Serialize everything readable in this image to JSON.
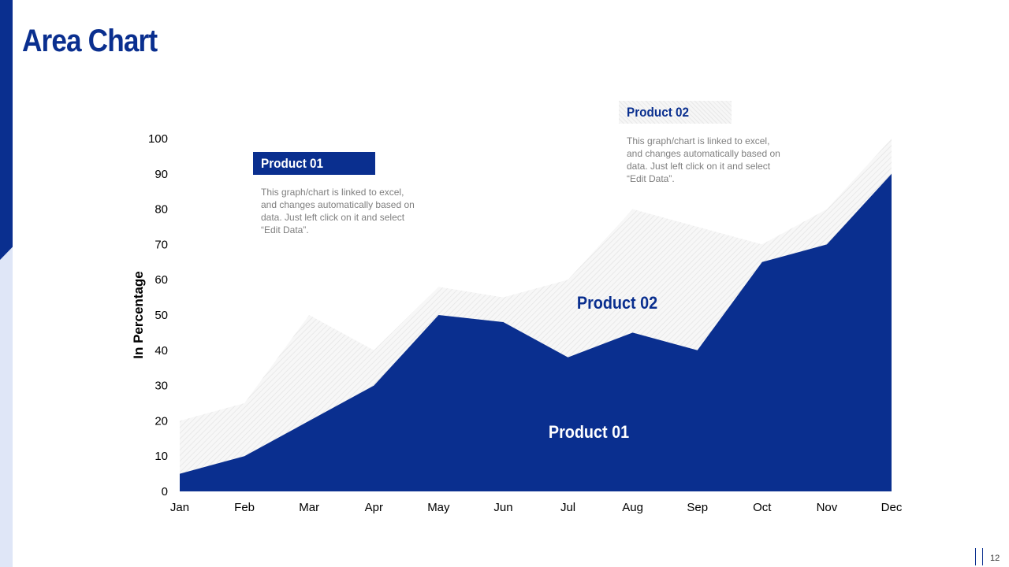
{
  "slide": {
    "title": "Area Chart",
    "page_number": "12"
  },
  "colors": {
    "primary": "#0a2f8f",
    "hatch": "#e3e3e3",
    "text_gray": "#7f7f7f",
    "accent_light": "#dfe6f7"
  },
  "legend": {
    "product_01": {
      "label": "Product 01",
      "description": "This graph/chart is linked to excel, and changes automatically based on data. Just left click on it and select “Edit Data”."
    },
    "product_02": {
      "label": "Product 02",
      "description": "This graph/chart is linked to excel, and changes automatically based on data. Just left click on it and select “Edit Data”."
    }
  },
  "chart_data": {
    "type": "area",
    "title": "",
    "xlabel": "",
    "ylabel": "In Percentage",
    "ylim": [
      0,
      100
    ],
    "yticks": [
      "0",
      "10",
      "20",
      "30",
      "40",
      "50",
      "60",
      "70",
      "80",
      "90",
      "100"
    ],
    "grid": false,
    "categories": [
      "Jan",
      "Feb",
      "Mar",
      "Apr",
      "May",
      "Jun",
      "Jul",
      "Aug",
      "Sep",
      "Oct",
      "Nov",
      "Dec"
    ],
    "series": [
      {
        "name": "Product 02",
        "values": [
          20,
          25,
          50,
          40,
          58,
          55,
          60,
          80,
          75,
          70,
          80,
          100
        ]
      },
      {
        "name": "Product 01",
        "values": [
          5,
          10,
          20,
          30,
          50,
          48,
          38,
          45,
          40,
          65,
          70,
          90
        ]
      }
    ],
    "annotations": [
      "Product 02",
      "Product 01"
    ]
  }
}
